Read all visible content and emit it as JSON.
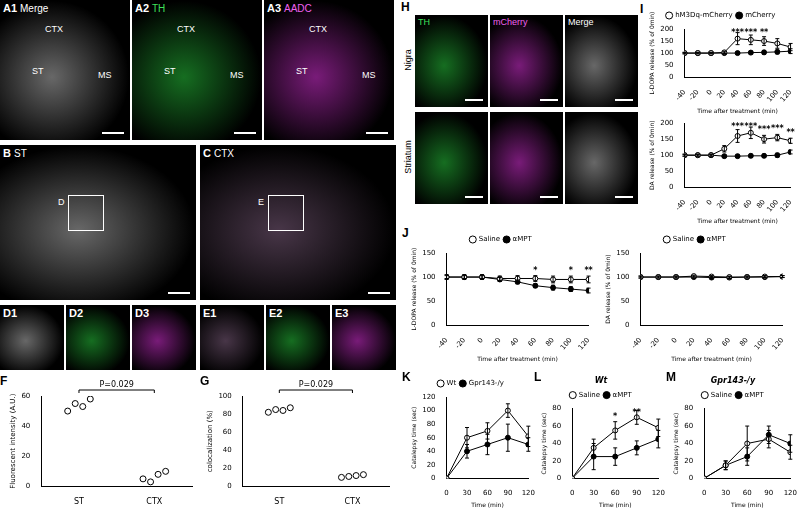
{
  "image_panels": [
    {
      "panel": "A1",
      "title": "Merge",
      "texts": [
        "CTX",
        "ST",
        "MS"
      ]
    },
    {
      "panel": "A2",
      "title": "TH",
      "texts": [
        "CTX",
        "ST",
        "MS"
      ]
    },
    {
      "panel": "A3",
      "title": "AADC",
      "texts": [
        "CTX",
        "ST",
        "MS"
      ]
    },
    {
      "panel": "B",
      "title": "ST",
      "texts": [
        "D"
      ]
    },
    {
      "panel": "C",
      "title": "CTX",
      "texts": [
        "E"
      ]
    },
    {
      "panel": "D1"
    },
    {
      "panel": "D2"
    },
    {
      "panel": "D3"
    },
    {
      "panel": "E1"
    },
    {
      "panel": "E2"
    },
    {
      "panel": "E3"
    },
    {
      "panel": "H",
      "columns": [
        "TH",
        "mCherry",
        "Merge"
      ],
      "rows": [
        "Nigra",
        "Striatum"
      ]
    }
  ],
  "chart_data": [
    {
      "panel": "F",
      "type": "dot",
      "categories": [
        "ST",
        "CTX"
      ],
      "values": [
        [
          50,
          55,
          53,
          58
        ],
        [
          5,
          3,
          8,
          10
        ]
      ],
      "y_label": "Fluorescent intensity (A.U.)",
      "ylim": [
        0,
        60
      ],
      "yticks": [
        0,
        20,
        40,
        60
      ],
      "annotation": "P=0.029",
      "color": "#000000",
      "marker": "open_circle",
      "grid": false
    },
    {
      "panel": "G",
      "type": "dot",
      "categories": [
        "ST",
        "CTX"
      ],
      "values": [
        [
          82,
          85,
          84,
          87
        ],
        [
          10,
          11,
          12,
          13
        ]
      ],
      "y_label": "colocalization (%)",
      "ylim": [
        0,
        100
      ],
      "yticks": [
        0,
        20,
        40,
        60,
        80,
        100
      ],
      "annotation": "P=0.029",
      "color": "#000000",
      "marker": "open_circle",
      "grid": false
    },
    {
      "panel": "I",
      "type": "line",
      "x": [
        -40,
        -20,
        0,
        20,
        40,
        60,
        80,
        100,
        120
      ],
      "x_label": "Time after treatment (min)",
      "y_label": "L-DOPA release (% of 0min)",
      "xlim": [
        -40,
        120
      ],
      "xticks": [
        -40,
        -20,
        0,
        20,
        40,
        60,
        80,
        100,
        120
      ],
      "ylim": [
        0,
        200
      ],
      "yticks": [
        0,
        50,
        100,
        150,
        200
      ],
      "legend": "top",
      "grid": false,
      "series": [
        {
          "name": "hM3Dq-mCherry",
          "color": "#000000",
          "marker": "open_circle",
          "values": [
            100,
            100,
            100,
            103,
            160,
            155,
            150,
            140,
            125
          ],
          "errors": [
            3,
            3,
            3,
            5,
            25,
            20,
            18,
            20,
            15
          ]
        },
        {
          "name": "mCherry",
          "color": "#000000",
          "marker": "filled_circle",
          "values": [
            100,
            100,
            100,
            100,
            100,
            102,
            103,
            105,
            108
          ],
          "errors": [
            3,
            3,
            3,
            4,
            5,
            6,
            8,
            8,
            10
          ]
        }
      ],
      "annotations": [
        {
          "x": 40,
          "text": "***"
        },
        {
          "x": 60,
          "text": "***"
        },
        {
          "x": 80,
          "text": "**"
        }
      ]
    },
    {
      "panel": "I",
      "type": "line",
      "x": [
        -40,
        -20,
        0,
        20,
        40,
        60,
        80,
        100,
        120
      ],
      "x_label": "Time after treatment (min)",
      "y_label": "DA release (% of 0min)",
      "xlim": [
        -40,
        120
      ],
      "xticks": [
        -40,
        -20,
        0,
        20,
        40,
        60,
        80,
        100,
        120
      ],
      "ylim": [
        0,
        200
      ],
      "yticks": [
        0,
        50,
        100,
        150,
        200
      ],
      "grid": false,
      "series": [
        {
          "name": "hM3Dq-mCherry",
          "color": "#000000",
          "marker": "open_circle",
          "values": [
            100,
            100,
            100,
            120,
            160,
            170,
            150,
            155,
            145
          ],
          "errors": [
            3,
            3,
            3,
            10,
            20,
            18,
            12,
            10,
            8
          ]
        },
        {
          "name": "mCherry",
          "color": "#000000",
          "marker": "filled_circle",
          "values": [
            100,
            100,
            100,
            97,
            97,
            98,
            98,
            100,
            110
          ],
          "errors": [
            3,
            3,
            3,
            4,
            4,
            5,
            5,
            6,
            6
          ]
        }
      ],
      "annotations": [
        {
          "x": 40,
          "text": "***"
        },
        {
          "x": 60,
          "text": "***"
        },
        {
          "x": 80,
          "text": "***"
        },
        {
          "x": 100,
          "text": "***"
        },
        {
          "x": 120,
          "text": "**"
        }
      ]
    },
    {
      "panel": "J",
      "type": "line",
      "x": [
        -40,
        -20,
        0,
        20,
        40,
        60,
        80,
        100,
        120
      ],
      "x_label": "Time after treatment (min)",
      "y_label": "L-DOPA release (% of 0min)",
      "xlim": [
        -40,
        120
      ],
      "xticks": [
        -40,
        -20,
        0,
        20,
        40,
        60,
        80,
        100,
        120
      ],
      "ylim": [
        0,
        150
      ],
      "yticks": [
        0,
        50,
        100,
        150
      ],
      "legend": "top",
      "grid": false,
      "series": [
        {
          "name": "Saline",
          "color": "#000000",
          "marker": "open_circle",
          "values": [
            100,
            100,
            100,
            97,
            97,
            97,
            95,
            95,
            95
          ],
          "errors": [
            5,
            5,
            5,
            5,
            6,
            6,
            7,
            7,
            7
          ]
        },
        {
          "name": "αMPT",
          "color": "#000000",
          "marker": "filled_circle",
          "values": [
            100,
            100,
            100,
            95,
            90,
            82,
            78,
            75,
            72
          ],
          "errors": [
            3,
            3,
            3,
            4,
            4,
            4,
            5,
            5,
            5
          ]
        }
      ],
      "annotations": [
        {
          "x": 60,
          "text": "*"
        },
        {
          "x": 100,
          "text": "*"
        },
        {
          "x": 120,
          "text": "**"
        }
      ]
    },
    {
      "panel": "J",
      "type": "line",
      "x": [
        -40,
        -20,
        0,
        20,
        40,
        60,
        80,
        100,
        120
      ],
      "x_label": "Time after treatment (min)",
      "y_label": "DA release (% of 0min)",
      "xlim": [
        -40,
        120
      ],
      "xticks": [
        -40,
        -20,
        0,
        20,
        40,
        60,
        80,
        100,
        120
      ],
      "ylim": [
        0,
        150
      ],
      "yticks": [
        0,
        50,
        100,
        150
      ],
      "legend": "top",
      "grid": false,
      "series": [
        {
          "name": "Saline",
          "color": "#000000",
          "marker": "open_circle",
          "values": [
            100,
            100,
            100,
            102,
            101,
            100,
            100,
            101,
            101
          ],
          "errors": [
            2,
            2,
            2,
            2,
            2,
            2,
            2,
            2,
            2
          ]
        },
        {
          "name": "αMPT",
          "color": "#000000",
          "marker": "filled_circle",
          "values": [
            100,
            100,
            100,
            100,
            99,
            99,
            100,
            100,
            101
          ],
          "errors": [
            2,
            2,
            2,
            2,
            2,
            2,
            2,
            2,
            2
          ]
        }
      ]
    },
    {
      "panel": "K",
      "type": "line",
      "x": [
        0,
        30,
        60,
        90,
        120
      ],
      "x_label": "Time (min)",
      "y_label": "Catalepsy time (sec)",
      "xlim": [
        0,
        120
      ],
      "xticks": [
        0,
        30,
        60,
        90,
        120
      ],
      "ylim": [
        0,
        120
      ],
      "yticks": [
        0,
        20,
        40,
        60,
        80,
        100,
        120
      ],
      "legend": "top",
      "grid": false,
      "series": [
        {
          "name": "Wt",
          "color": "#000000",
          "marker": "open_circle",
          "values": [
            0,
            60,
            70,
            100,
            62
          ],
          "errors": [
            0,
            15,
            12,
            10,
            15
          ]
        },
        {
          "name": "Gpr143-/y",
          "color": "#000000",
          "marker": "filled_circle",
          "values": [
            0,
            40,
            50,
            60,
            50
          ],
          "errors": [
            0,
            10,
            15,
            20,
            10
          ]
        }
      ]
    },
    {
      "panel": "L",
      "type": "line",
      "title": "Wt",
      "x": [
        0,
        30,
        60,
        90,
        120
      ],
      "x_label": "Time (min)",
      "y_label": "Catalepsy time (sec)",
      "xlim": [
        0,
        120
      ],
      "xticks": [
        0,
        30,
        60,
        90,
        120
      ],
      "ylim": [
        0,
        80
      ],
      "yticks": [
        0,
        20,
        40,
        60,
        80
      ],
      "legend": "top",
      "grid": false,
      "series": [
        {
          "name": "Saline",
          "color": "#000000",
          "marker": "open_circle",
          "values": [
            0,
            35,
            55,
            70,
            58
          ],
          "errors": [
            0,
            10,
            10,
            8,
            10
          ]
        },
        {
          "name": "αMPT",
          "color": "#000000",
          "marker": "filled_circle",
          "values": [
            0,
            25,
            25,
            35,
            45
          ],
          "errors": [
            0,
            15,
            10,
            8,
            10
          ]
        }
      ],
      "annotations": [
        {
          "x": 60,
          "text": "*"
        },
        {
          "x": 90,
          "text": "**"
        }
      ]
    },
    {
      "panel": "M",
      "type": "line",
      "title": "Gpr143-/y",
      "x": [
        0,
        30,
        60,
        90,
        120
      ],
      "x_label": "Time (min)",
      "y_label": "Catalepsy time (sec)",
      "xlim": [
        0,
        120
      ],
      "xticks": [
        0,
        30,
        60,
        90,
        120
      ],
      "ylim": [
        0,
        80
      ],
      "yticks": [
        0,
        20,
        40,
        60,
        80
      ],
      "legend": "top",
      "grid": false,
      "series": [
        {
          "name": "Saline",
          "color": "#000000",
          "marker": "open_circle",
          "values": [
            0,
            15,
            40,
            45,
            30
          ],
          "errors": [
            0,
            5,
            20,
            10,
            8
          ]
        },
        {
          "name": "αMPT",
          "color": "#000000",
          "marker": "filled_circle",
          "values": [
            0,
            15,
            25,
            50,
            40
          ],
          "errors": [
            0,
            5,
            10,
            10,
            10
          ]
        }
      ]
    }
  ]
}
